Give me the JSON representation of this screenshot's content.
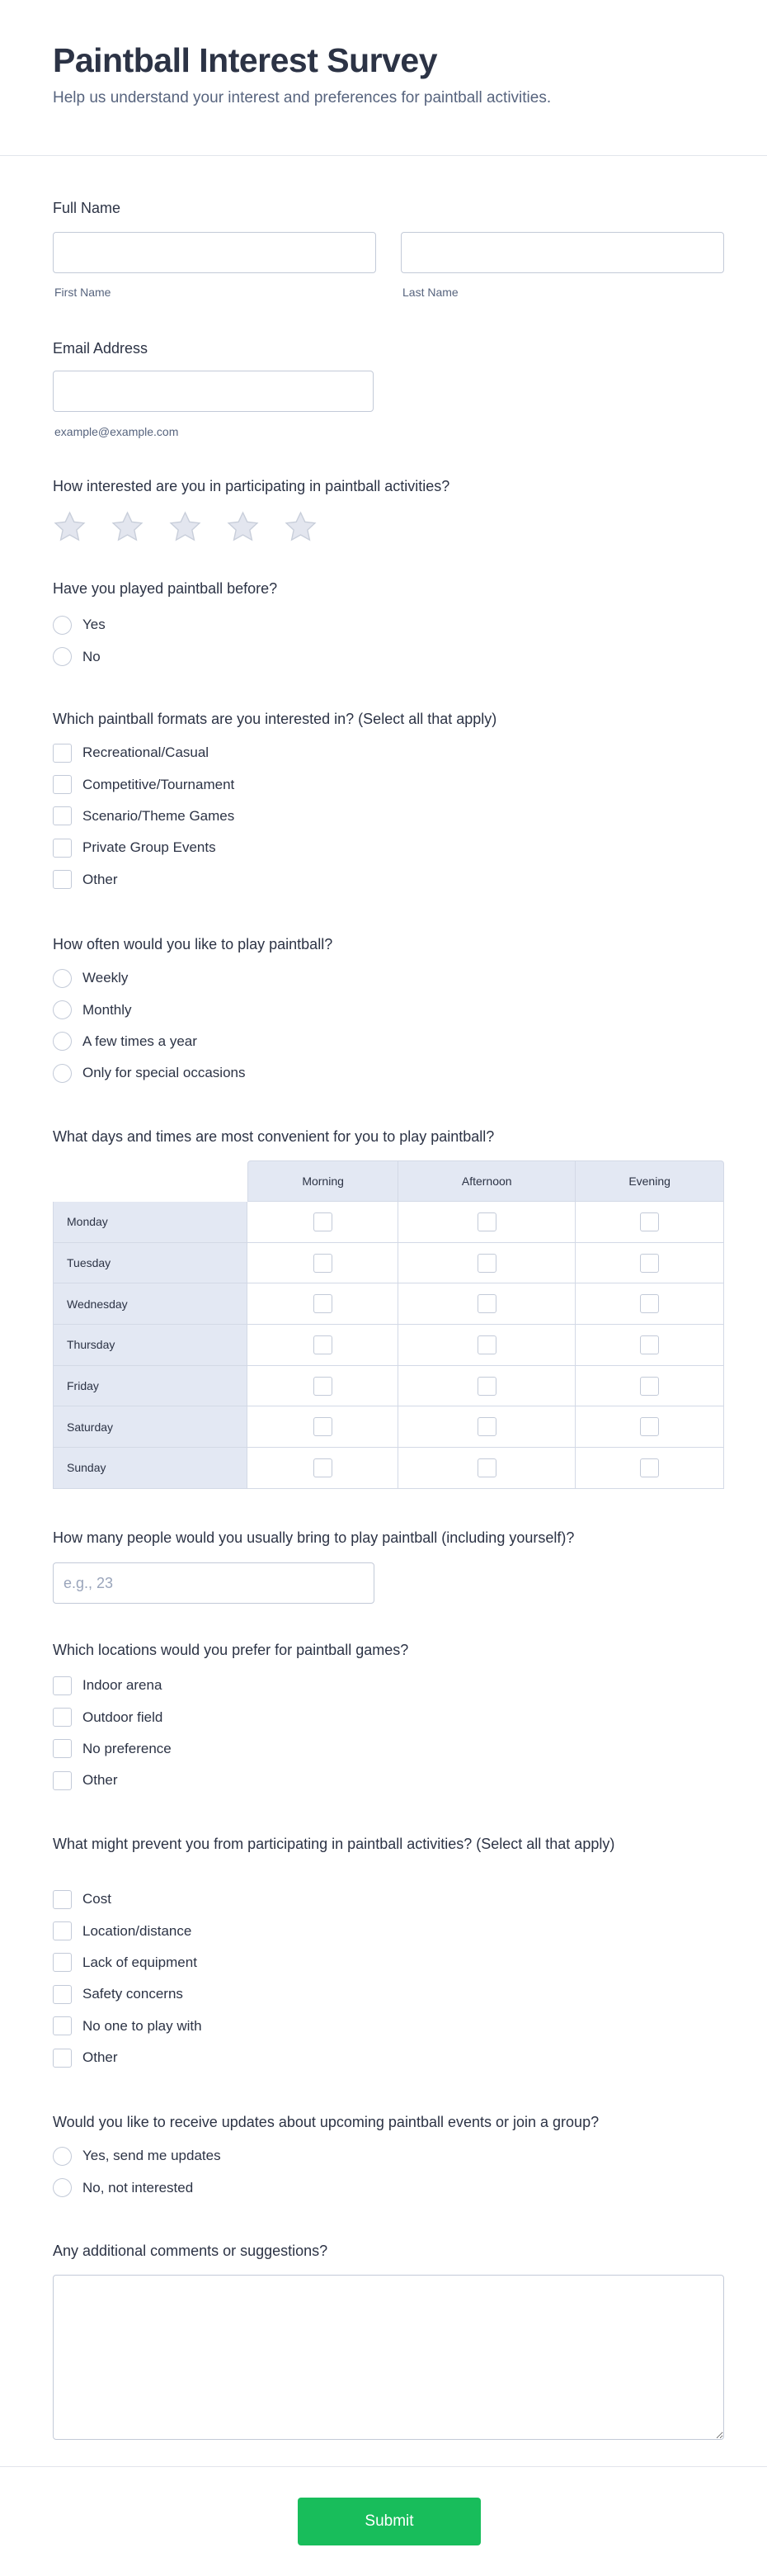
{
  "header": {
    "title": "Paintball Interest Survey",
    "subtitle": "Help us understand your interest and preferences for paintball activities."
  },
  "full_name": {
    "label": "Full Name",
    "first_sub": "First Name",
    "last_sub": "Last Name",
    "first_value": "",
    "last_value": ""
  },
  "email": {
    "label": "Email Address",
    "hint": "example@example.com",
    "value": ""
  },
  "rating": {
    "label": "How interested are you in participating in paintball activities?",
    "max": 5,
    "value": 0,
    "icon": "star-icon",
    "colors": {
      "fill": "#e3e6ef",
      "stroke": "#c8ceda"
    }
  },
  "played": {
    "label": "Have you played paintball before?",
    "options": [
      "Yes",
      "No"
    ]
  },
  "formats": {
    "label": "Which paintball formats are you interested in? (Select all that apply)",
    "options": [
      "Recreational/Casual",
      "Competitive/Tournament",
      "Scenario/Theme Games",
      "Private Group Events",
      "Other"
    ]
  },
  "frequency": {
    "label": "How often would you like to play paintball?",
    "options": [
      "Weekly",
      "Monthly",
      "A few times a year",
      "Only for special occasions"
    ]
  },
  "schedule": {
    "label": "What days and times are most convenient for you to play paintball?",
    "columns": [
      "Morning",
      "Afternoon",
      "Evening"
    ],
    "rows": [
      "Monday",
      "Tuesday",
      "Wednesday",
      "Thursday",
      "Friday",
      "Saturday",
      "Sunday"
    ]
  },
  "group_size": {
    "label": "How many people would you usually bring to play paintball (including yourself)?",
    "placeholder": "e.g., 23",
    "value": ""
  },
  "locations": {
    "label": "Which locations would you prefer for paintball games?",
    "options": [
      "Indoor arena",
      "Outdoor field",
      "No preference",
      "Other"
    ]
  },
  "barriers": {
    "label": "What might prevent you from participating in paintball activities? (Select all that apply)",
    "options": [
      "Cost",
      "Location/distance",
      "Lack of equipment",
      "Safety concerns",
      "No one to play with",
      "Other"
    ]
  },
  "updates": {
    "label": "Would you like to receive updates about upcoming paintball events or join a group?",
    "options": [
      "Yes, send me updates",
      "No, not interested"
    ]
  },
  "comments": {
    "label": "Any additional comments or suggestions?",
    "value": ""
  },
  "submit": {
    "label": "Submit",
    "color": "#18bd5b"
  }
}
